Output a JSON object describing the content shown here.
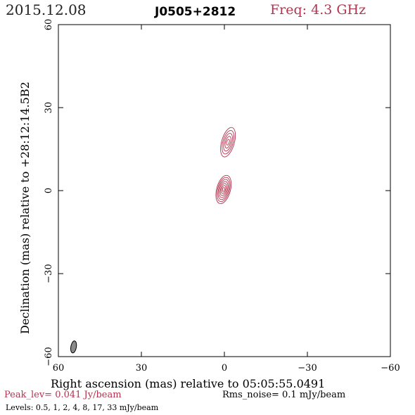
{
  "header": {
    "date": "2015.12.08",
    "source": "J0505+2812",
    "freq": "Freq: 4.3 GHz"
  },
  "footer": {
    "peak": "Peak_lev=  0.041 Jy/beam",
    "rms": "Rms_noise=  0.1 mJy/beam",
    "levels": "Levels: 0.5,   1,   2,   4,   8,  17,  33 mJy/beam"
  },
  "colors": {
    "contour": "#b2344f",
    "beam_fill": "#8a8a8a"
  },
  "chart_data": {
    "type": "contour",
    "xlabel": "Right ascension (mas) relative to 05:05:55.0491",
    "ylabel": "Declination (mas) relative to +28:12:14.5B2",
    "xlim": [
      60,
      -60
    ],
    "ylim": [
      -60,
      60
    ],
    "xticks": [
      60,
      30,
      0,
      -30,
      -60
    ],
    "yticks": [
      60,
      30,
      0,
      -30,
      -60
    ],
    "xtick_labels": [
      "60",
      "30",
      "0",
      "−30",
      "−60"
    ],
    "ytick_labels": [
      "60",
      "30",
      "0",
      "−30",
      "−60"
    ],
    "contour_levels_mJy": [
      0.5,
      1,
      2,
      4,
      8,
      17,
      33
    ],
    "components": [
      {
        "x": 0.3,
        "y": 0.4,
        "major": 10.5,
        "minor": 5.0,
        "pa_deg": 15,
        "n_contours": 7
      },
      {
        "x": -1.3,
        "y": 17.5,
        "major": 11.0,
        "minor": 4.6,
        "pa_deg": 16,
        "n_contours": 5
      }
    ],
    "beam": {
      "x": 54.5,
      "y": -56.5,
      "major": 4.4,
      "minor": 2.0,
      "pa_deg": 10
    },
    "grid": false
  }
}
